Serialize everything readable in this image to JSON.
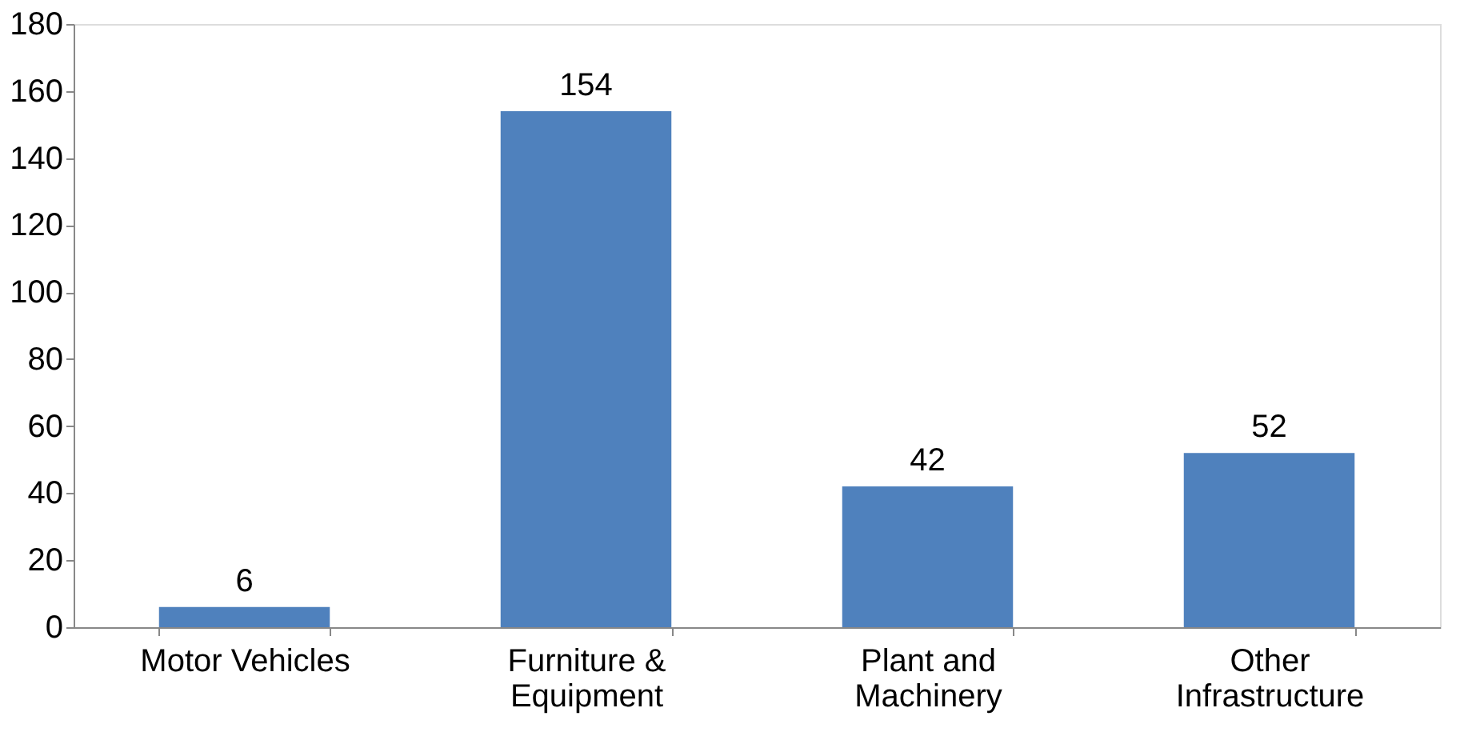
{
  "chart_data": {
    "type": "bar",
    "categories": [
      "Motor Vehicles",
      "Furniture & Equipment",
      "Plant and Machinery",
      "Other Infrastructure"
    ],
    "values": [
      6,
      154,
      42,
      52
    ],
    "color": "#4f81bd",
    "ylim": [
      0,
      180
    ],
    "yticks": [
      0,
      20,
      40,
      60,
      80,
      100,
      120,
      140,
      160,
      180
    ],
    "grid": false,
    "data_labels": true
  }
}
